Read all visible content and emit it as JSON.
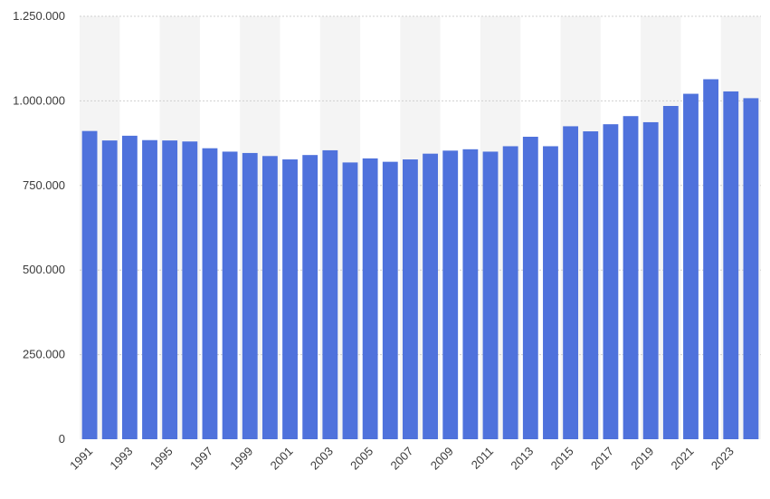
{
  "colors": {
    "bar": "#4f72dc",
    "band": "#f4f4f4",
    "grid": "#cfcfcf",
    "axis_text": "#3a3a3a"
  },
  "chart_data": {
    "type": "bar",
    "categories": [
      "1991",
      "1992",
      "1993",
      "1994",
      "1995",
      "1996",
      "1997",
      "1998",
      "1999",
      "2000",
      "2001",
      "2002",
      "2003",
      "2004",
      "2005",
      "2006",
      "2007",
      "2008",
      "2009",
      "2010",
      "2011",
      "2012",
      "2013",
      "2014",
      "2015",
      "2016",
      "2017",
      "2018",
      "2019",
      "2020",
      "2021",
      "2022",
      "2023",
      "2024"
    ],
    "x_tick_labels": [
      "1991",
      "",
      "1993",
      "",
      "1995",
      "",
      "1997",
      "",
      "1999",
      "",
      "2001",
      "",
      "2003",
      "",
      "2005",
      "",
      "2007",
      "",
      "2009",
      "",
      "2011",
      "",
      "2013",
      "",
      "2015",
      "",
      "2017",
      "",
      "2019",
      "",
      "2021",
      "",
      "2023",
      ""
    ],
    "values": [
      911000,
      883000,
      897000,
      884000,
      883000,
      880000,
      860000,
      850000,
      846000,
      837000,
      827000,
      840000,
      854000,
      818000,
      830000,
      820000,
      827000,
      844000,
      853000,
      857000,
      850000,
      866000,
      894000,
      866000,
      925000,
      910000,
      931000,
      955000,
      937000,
      985000,
      1021000,
      1064000,
      1028000,
      1008000
    ],
    "ylim": [
      0,
      1250000
    ],
    "y_ticks": [
      0,
      250000,
      500000,
      750000,
      1000000,
      1250000
    ],
    "y_tick_labels": [
      "0",
      "250.000",
      "500.000",
      "750.000",
      "1.000.000",
      "1.250.000"
    ],
    "title": "",
    "xlabel": "",
    "ylabel": "",
    "grid": true,
    "alternating_bands": true,
    "legend": "none"
  }
}
